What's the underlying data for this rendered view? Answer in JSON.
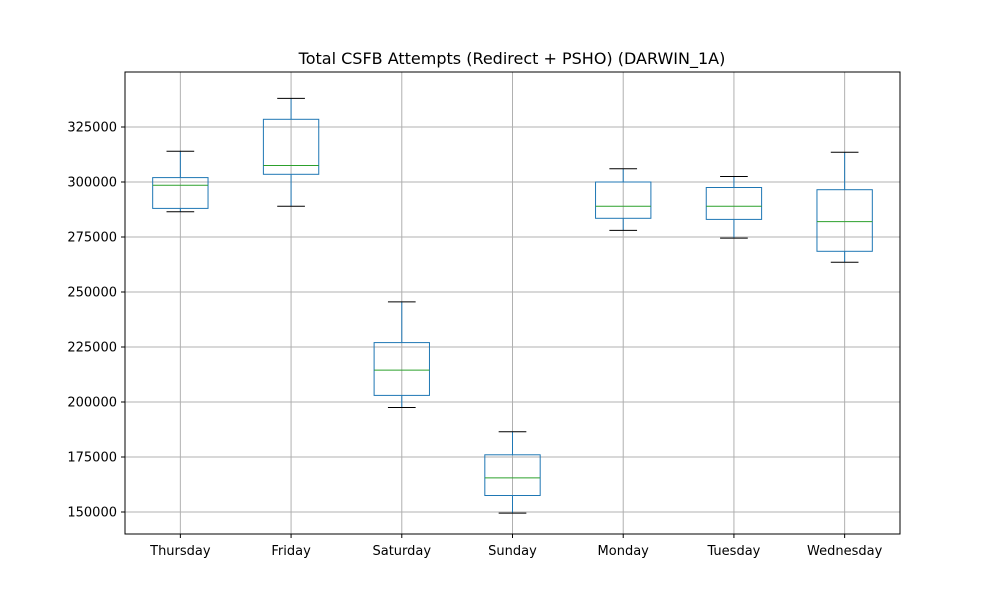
{
  "chart_data": {
    "type": "box",
    "title": "Total CSFB Attempts (Redirect + PSHO) (DARWIN_1A)",
    "xlabel": "",
    "ylabel": "",
    "categories": [
      "Thursday",
      "Friday",
      "Saturday",
      "Sunday",
      "Monday",
      "Tuesday",
      "Wednesday"
    ],
    "boxes": [
      {
        "label": "Thursday",
        "whisker_low": 286500,
        "q1": 288000,
        "median": 298500,
        "q3": 302000,
        "whisker_high": 314000
      },
      {
        "label": "Friday",
        "whisker_low": 289000,
        "q1": 303500,
        "median": 307500,
        "q3": 328500,
        "whisker_high": 338000
      },
      {
        "label": "Saturday",
        "whisker_low": 197500,
        "q1": 203000,
        "median": 214500,
        "q3": 227000,
        "whisker_high": 245500
      },
      {
        "label": "Sunday",
        "whisker_low": 149500,
        "q1": 157500,
        "median": 165500,
        "q3": 176000,
        "whisker_high": 186500
      },
      {
        "label": "Monday",
        "whisker_low": 278000,
        "q1": 283500,
        "median": 289000,
        "q3": 300000,
        "whisker_high": 306000
      },
      {
        "label": "Tuesday",
        "whisker_low": 274500,
        "q1": 283000,
        "median": 289000,
        "q3": 297500,
        "whisker_high": 302500
      },
      {
        "label": "Wednesday",
        "whisker_low": 263500,
        "q1": 268500,
        "median": 282000,
        "q3": 296500,
        "whisker_high": 313500
      }
    ],
    "y_ticks": [
      150000,
      175000,
      200000,
      225000,
      250000,
      275000,
      300000,
      325000
    ],
    "y_tick_labels": [
      "150000",
      "175000",
      "200000",
      "225000",
      "250000",
      "275000",
      "300000",
      "325000"
    ],
    "ylim": [
      140000,
      350000
    ],
    "grid": true,
    "colors": {
      "box": "#1f77b4",
      "median": "#2ca02c",
      "whisker_cap": "#000000",
      "grid": "#b0b0b0",
      "axes": "#000000"
    }
  }
}
